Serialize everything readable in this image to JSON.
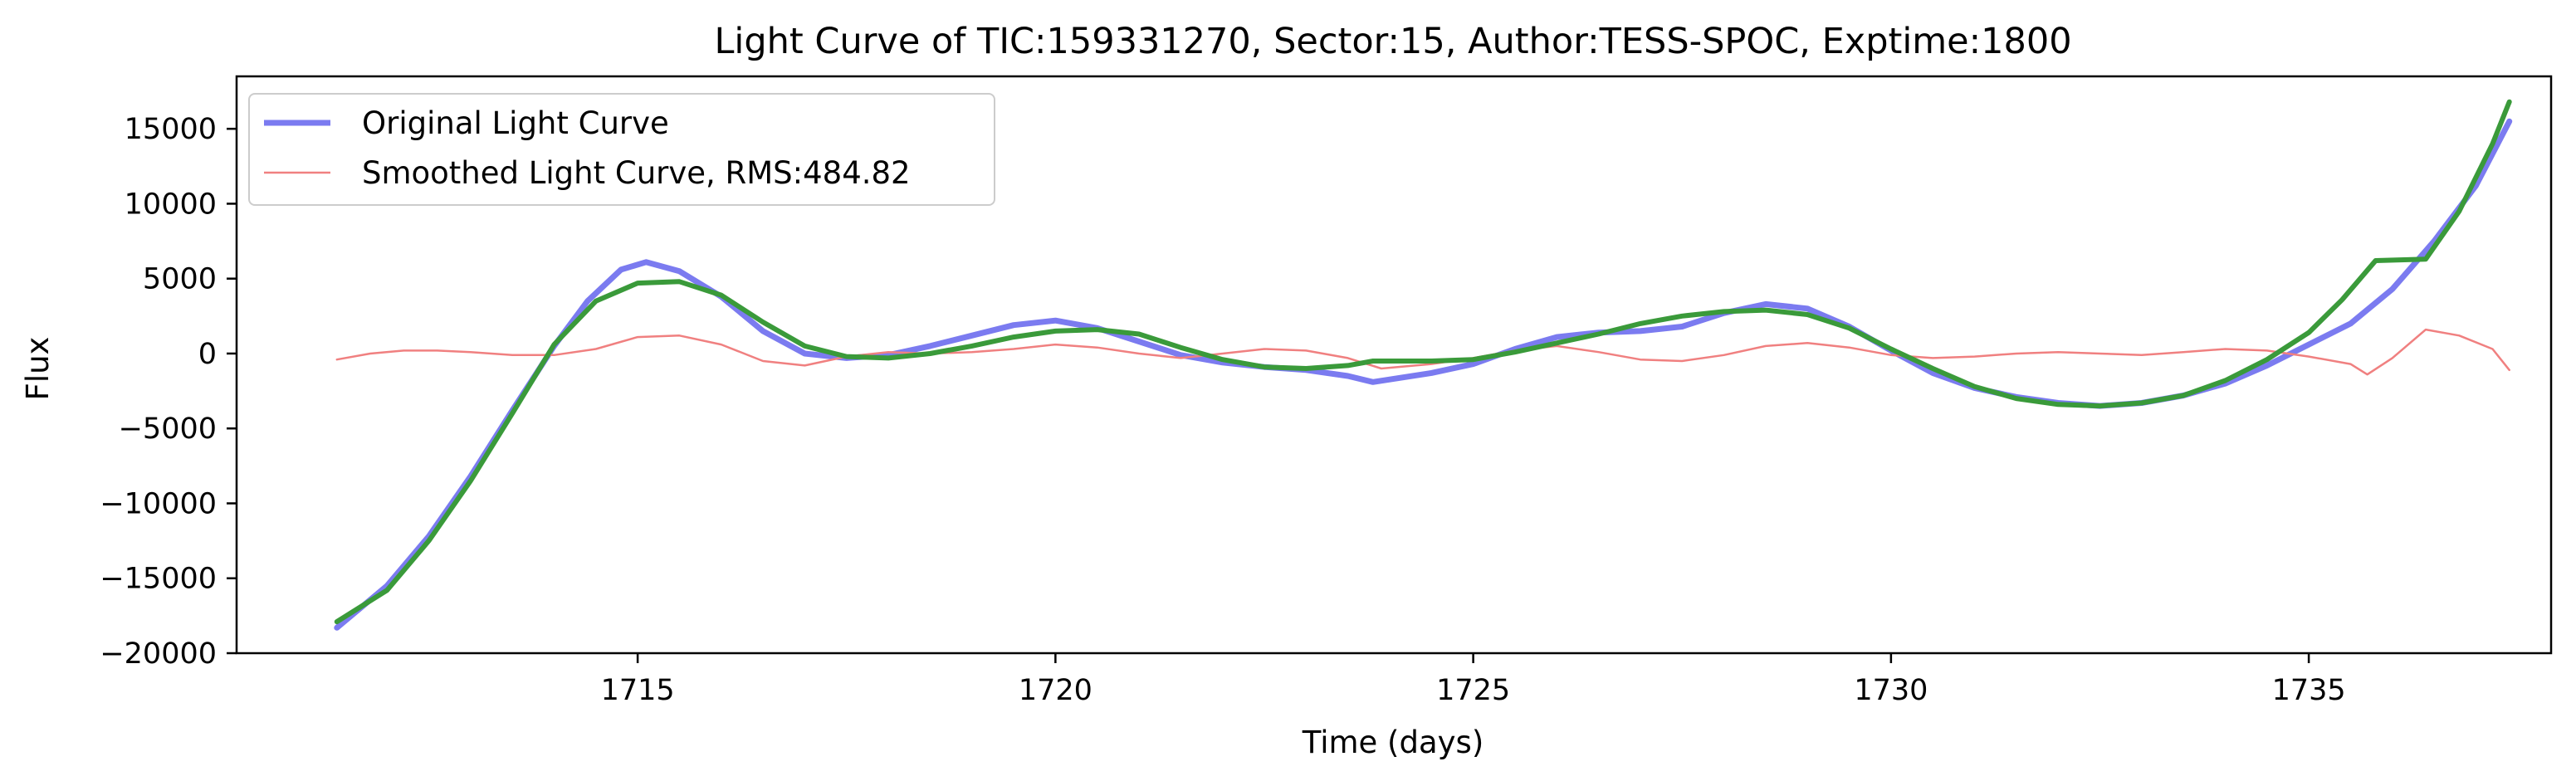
{
  "chart_data": {
    "type": "line",
    "title": "Light Curve of TIC:159331270, Sector:15, Author:TESS-SPOC, Exptime:1800",
    "xlabel": "Time (days)",
    "ylabel": "Flux",
    "xlim": [
      1710.2,
      1737.9
    ],
    "ylim": [
      -20000,
      18500
    ],
    "xticks": [
      1715,
      1720,
      1725,
      1730,
      1735
    ],
    "xtick_labels": [
      "1715",
      "1720",
      "1725",
      "1730",
      "1735"
    ],
    "yticks": [
      -20000,
      -15000,
      -10000,
      -5000,
      0,
      5000,
      10000,
      15000
    ],
    "ytick_labels": [
      "−20000",
      "−15000",
      "−10000",
      "−5000",
      "0",
      "5000",
      "10000",
      "15000"
    ],
    "grid": false,
    "legend_position": "upper-left",
    "series": [
      {
        "name": "Original Light Curve",
        "color": "#7b7bf0",
        "x": [
          1711.4,
          1712.0,
          1712.5,
          1713.0,
          1713.5,
          1714.0,
          1714.4,
          1714.8,
          1715.1,
          1715.5,
          1716.0,
          1716.5,
          1717.0,
          1717.5,
          1718.0,
          1718.5,
          1719.0,
          1719.5,
          1720.0,
          1720.5,
          1721.0,
          1721.5,
          1722.0,
          1722.5,
          1723.0,
          1723.5,
          1723.8,
          1724.5,
          1725.0,
          1725.5,
          1726.0,
          1726.5,
          1727.0,
          1727.5,
          1728.0,
          1728.5,
          1729.0,
          1729.5,
          1730.0,
          1730.5,
          1731.0,
          1731.5,
          1732.0,
          1732.5,
          1733.0,
          1733.5,
          1734.0,
          1734.5,
          1735.0,
          1735.5,
          1736.0,
          1736.5,
          1737.0,
          1737.4
        ],
        "y": [
          -18300,
          -15500,
          -12200,
          -8200,
          -3800,
          500,
          3500,
          5600,
          6100,
          5500,
          3800,
          1500,
          0,
          -300,
          -100,
          500,
          1200,
          1900,
          2200,
          1700,
          800,
          -100,
          -600,
          -900,
          -1100,
          -1500,
          -1900,
          -1300,
          -700,
          300,
          1100,
          1400,
          1500,
          1800,
          2700,
          3300,
          3000,
          1800,
          200,
          -1300,
          -2300,
          -2900,
          -3300,
          -3500,
          -3300,
          -2800,
          -2000,
          -800,
          600,
          2000,
          4300,
          7500,
          11200,
          15500
        ]
      },
      {
        "name": "Smoothed Light Curve, RMS:484.82",
        "color": "#f08080",
        "x": [
          1711.4,
          1711.8,
          1712.2,
          1712.6,
          1713.0,
          1713.5,
          1714.0,
          1714.5,
          1715.0,
          1715.5,
          1716.0,
          1716.5,
          1717.0,
          1717.5,
          1718.0,
          1718.5,
          1719.0,
          1719.5,
          1720.0,
          1720.5,
          1721.0,
          1721.5,
          1722.0,
          1722.5,
          1723.0,
          1723.5,
          1723.9,
          1724.5,
          1725.0,
          1725.5,
          1726.0,
          1726.5,
          1727.0,
          1727.5,
          1728.0,
          1728.5,
          1729.0,
          1729.5,
          1730.0,
          1730.5,
          1731.0,
          1731.5,
          1732.0,
          1732.5,
          1733.0,
          1733.5,
          1734.0,
          1734.5,
          1735.0,
          1735.5,
          1735.7,
          1736.0,
          1736.4,
          1736.8,
          1737.2,
          1737.4
        ],
        "y": [
          -400,
          0,
          200,
          200,
          100,
          -100,
          -100,
          300,
          1100,
          1200,
          600,
          -500,
          -800,
          -200,
          100,
          0,
          100,
          300,
          600,
          400,
          0,
          -300,
          0,
          300,
          200,
          -300,
          -1000,
          -700,
          -300,
          200,
          500,
          100,
          -400,
          -500,
          -100,
          500,
          700,
          400,
          -100,
          -300,
          -200,
          0,
          100,
          0,
          -100,
          100,
          300,
          200,
          -200,
          -700,
          -1400,
          -300,
          1600,
          1200,
          300,
          -1100
        ]
      },
      {
        "name": "",
        "color": "#3a9a3a",
        "x": [
          1711.4,
          1712.0,
          1712.5,
          1713.0,
          1713.5,
          1714.0,
          1714.5,
          1715.0,
          1715.5,
          1716.0,
          1716.5,
          1717.0,
          1717.5,
          1718.0,
          1718.5,
          1719.0,
          1719.5,
          1720.0,
          1720.5,
          1721.0,
          1721.5,
          1722.0,
          1722.5,
          1723.0,
          1723.5,
          1723.8,
          1724.5,
          1725.0,
          1725.5,
          1726.0,
          1726.5,
          1727.0,
          1727.5,
          1728.0,
          1728.5,
          1729.0,
          1729.5,
          1730.0,
          1730.5,
          1731.0,
          1731.5,
          1732.0,
          1732.5,
          1733.0,
          1733.5,
          1734.0,
          1734.5,
          1735.0,
          1735.4,
          1735.8,
          1736.4,
          1736.8,
          1737.2,
          1737.4
        ],
        "y": [
          -17900,
          -15800,
          -12500,
          -8500,
          -4000,
          600,
          3500,
          4700,
          4800,
          3900,
          2100,
          500,
          -200,
          -300,
          0,
          500,
          1100,
          1500,
          1600,
          1300,
          400,
          -400,
          -900,
          -1000,
          -800,
          -500,
          -500,
          -400,
          100,
          700,
          1300,
          2000,
          2500,
          2800,
          2900,
          2600,
          1700,
          300,
          -1000,
          -2200,
          -3000,
          -3400,
          -3500,
          -3300,
          -2800,
          -1800,
          -400,
          1400,
          3600,
          6200,
          6300,
          9500,
          14000,
          16800
        ]
      }
    ]
  }
}
